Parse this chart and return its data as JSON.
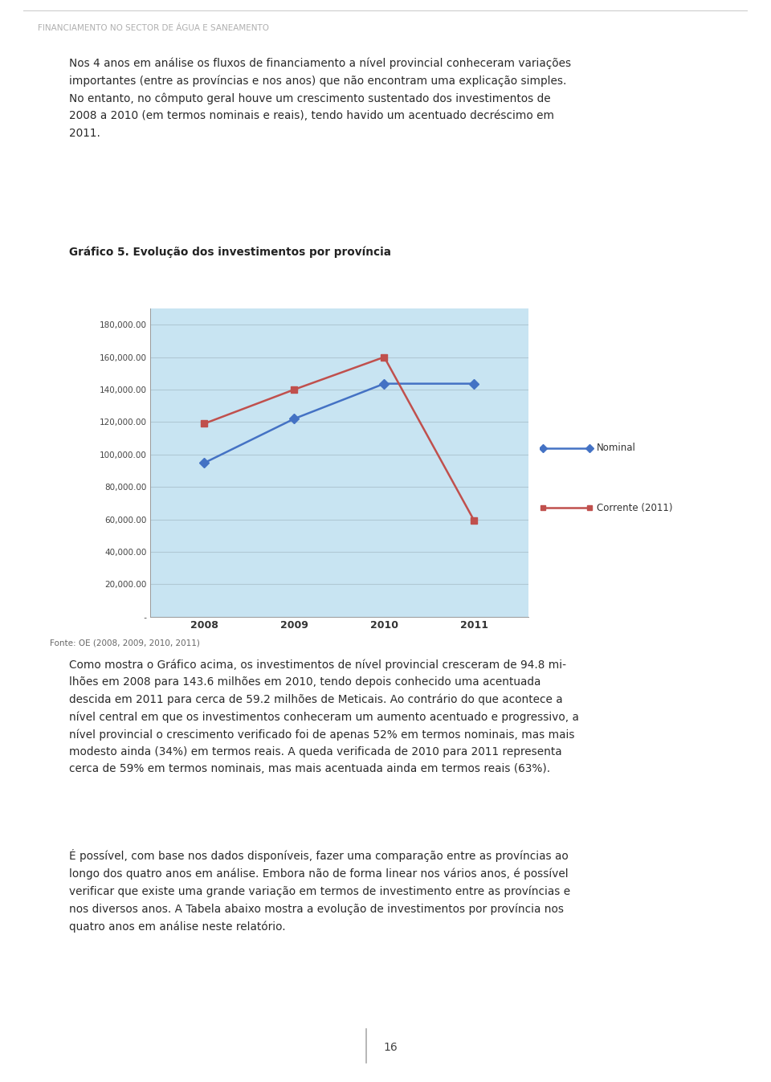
{
  "page_bg": "#ffffff",
  "header_text": "FINANCIAMENTO NO SECTOR DE ÁGUA E SANEAMENTO",
  "header_color": "#b0b0b0",
  "left_bar_color": "#1aabcc",
  "graph_title": "Gráfico 5. Evolução dos investimentos por província",
  "chart_outer_bg": "#a8cfe0",
  "chart_inner_bg": "#c8e4f2",
  "years": [
    2008,
    2009,
    2010,
    2011
  ],
  "nominal_values": [
    94800,
    122000,
    143600,
    143600
  ],
  "corrente_values": [
    119000,
    140000,
    160000,
    59200
  ],
  "nominal_color": "#4472c4",
  "corrente_color": "#c0504d",
  "ylim_max": 190000,
  "yticks": [
    0,
    20000,
    40000,
    60000,
    80000,
    100000,
    120000,
    140000,
    160000,
    180000
  ],
  "fonte_text": "Fonte: OE (2008, 2009, 2010, 2011)",
  "page_number": "16"
}
